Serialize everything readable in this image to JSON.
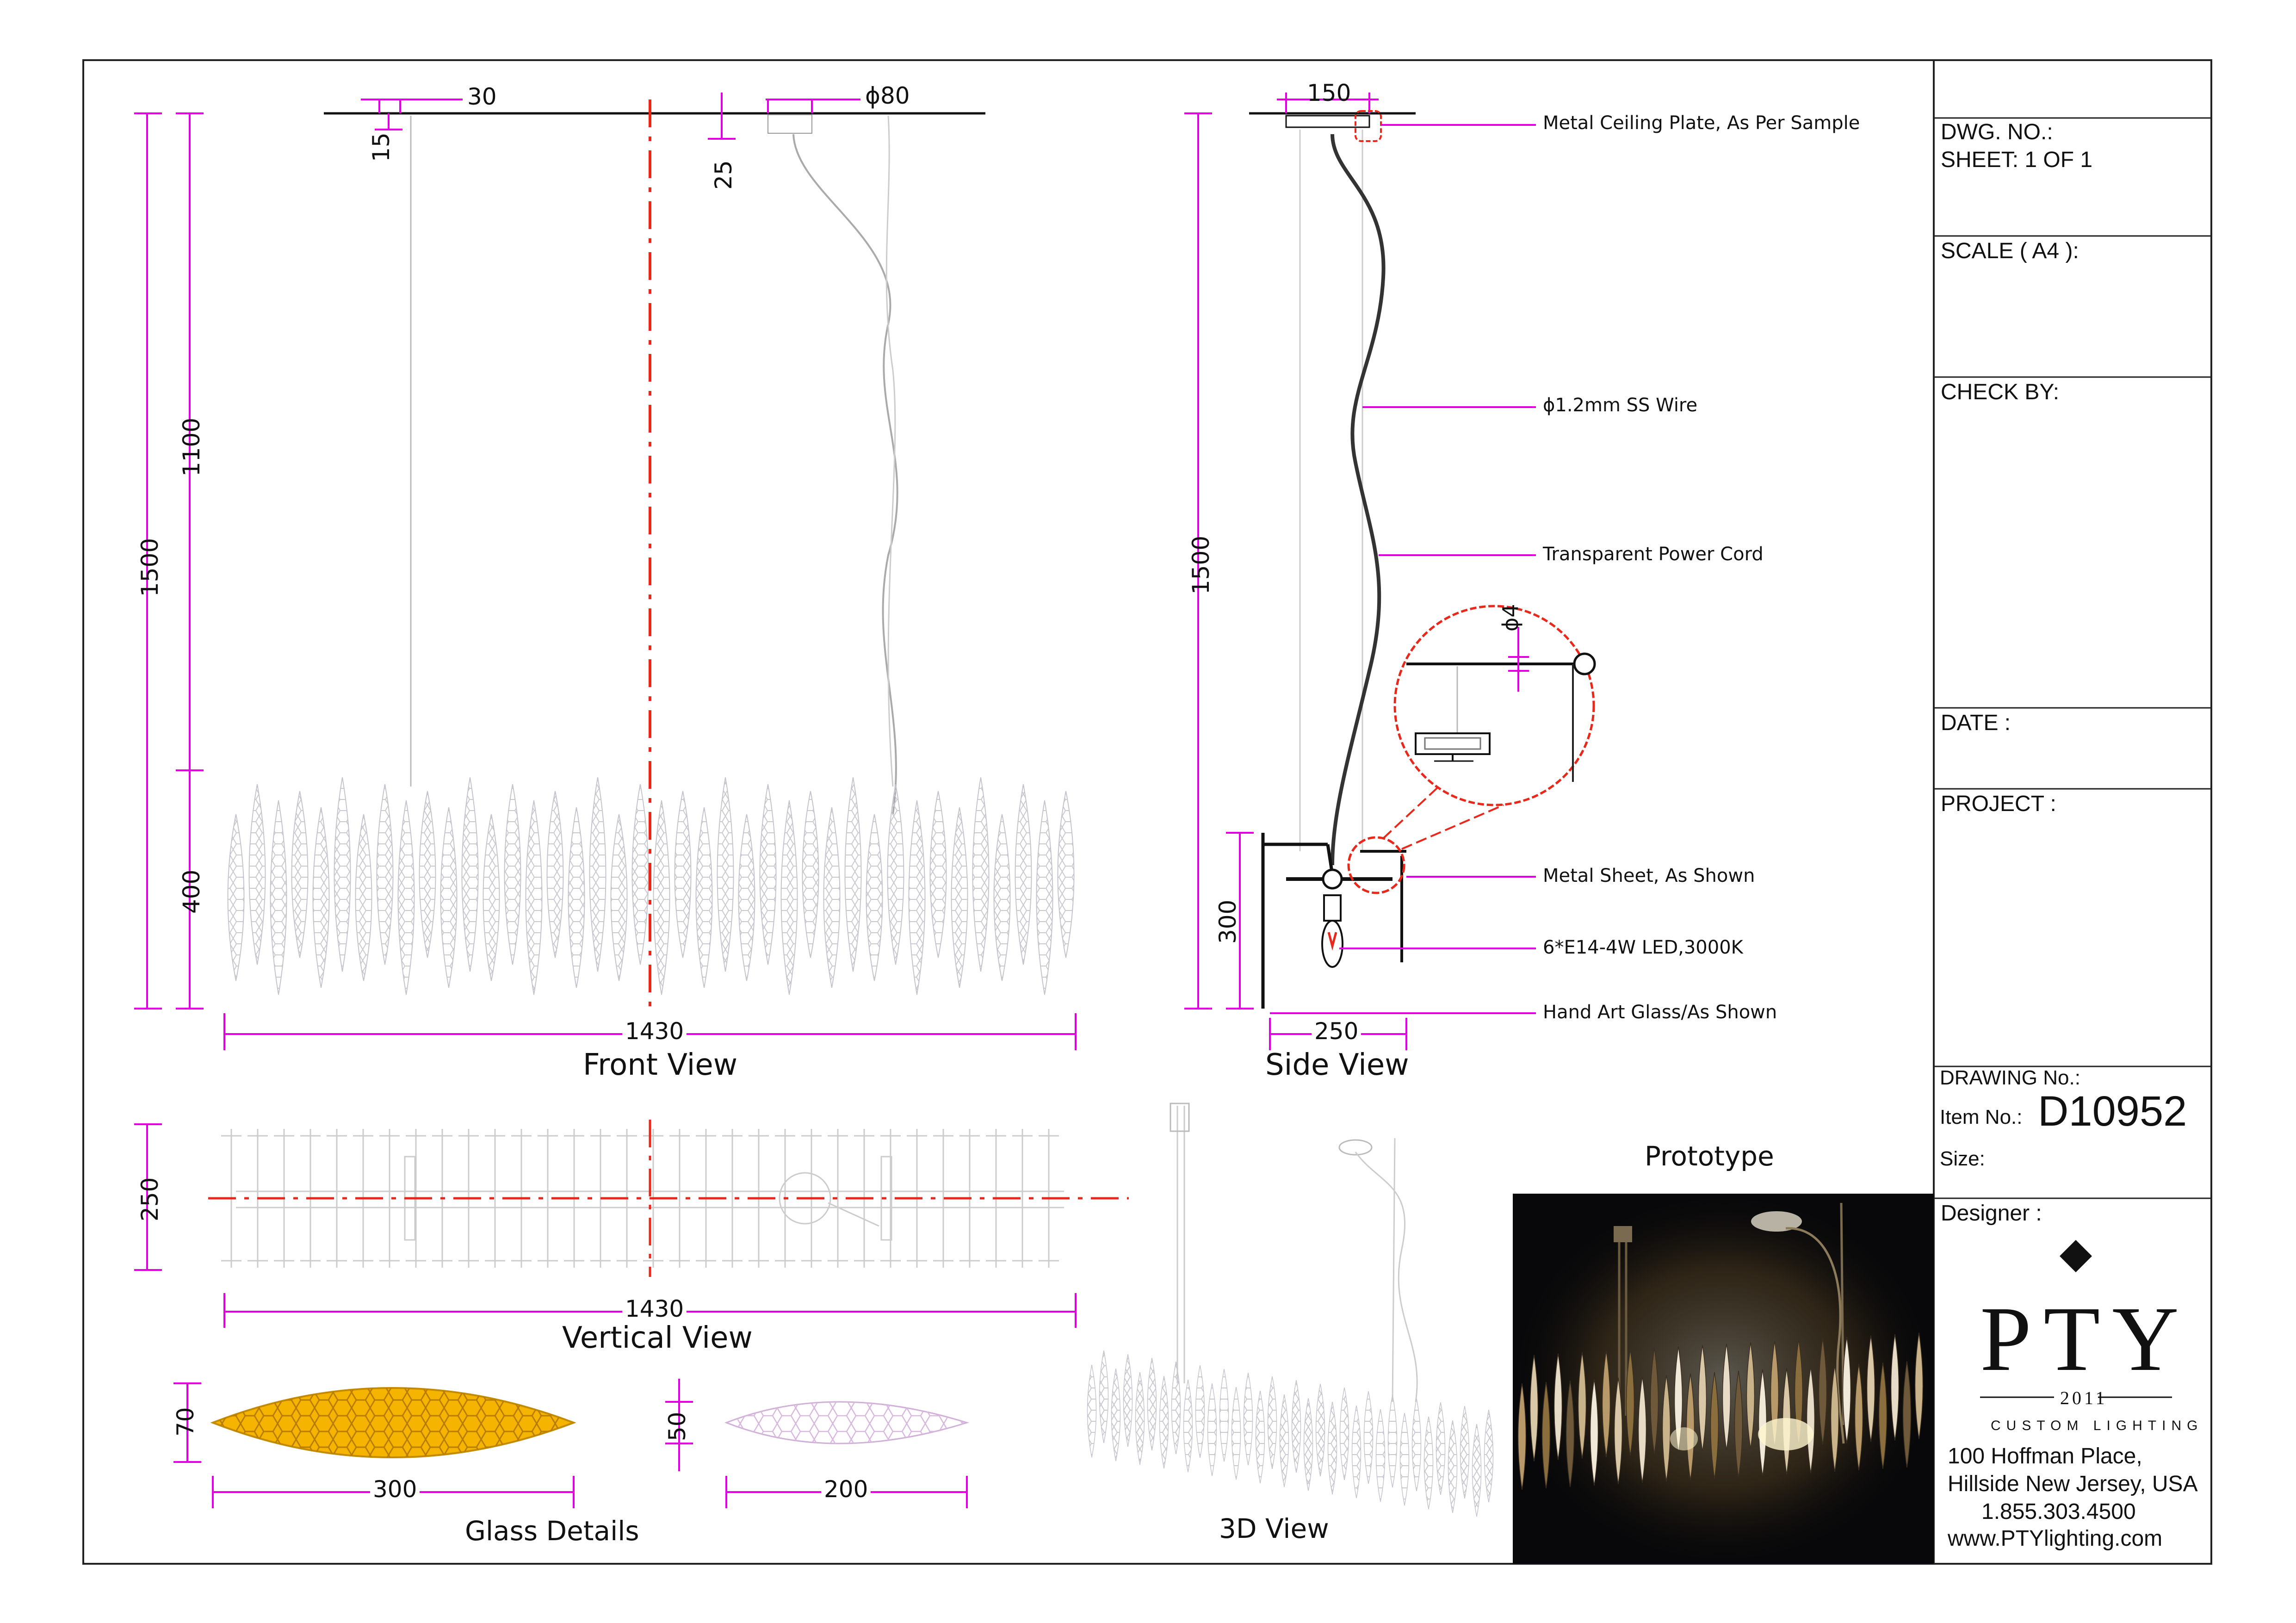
{
  "dimensions": {
    "front_top_left": "30",
    "front_plate_dia": "ϕ80",
    "front_drop_15": "15",
    "front_drop_25": "25",
    "front_total_height": "1500",
    "front_wire_height": "1100",
    "front_body_height": "400",
    "front_width": "1430",
    "side_plate_width": "150",
    "side_total_height": "1500",
    "side_frame_height": "300",
    "side_width": "250",
    "side_detail_dia": "ϕ4",
    "vertical_depth": "250",
    "vertical_width": "1430",
    "glass_large_height": "70",
    "glass_large_width": "300",
    "glass_small_height": "50",
    "glass_small_width": "200"
  },
  "callouts": {
    "ceiling_plate": "Metal Ceiling Plate, As Per Sample",
    "wire": "ϕ1.2mm SS Wire",
    "power_cord": "Transparent Power Cord",
    "metal_sheet": "Metal Sheet, As Shown",
    "led": "6*E14-4W LED,3000K",
    "glass": "Hand Art Glass/As Shown"
  },
  "view_titles": {
    "front": "Front View",
    "side": "Side View",
    "vertical": "Vertical View",
    "glass": "Glass Details",
    "three_d": "3D View",
    "prototype": "Prototype"
  },
  "title_block": {
    "dwg_no": "DWG. NO.:",
    "sheet": "SHEET: 1 OF 1",
    "scale": "SCALE ( A4 ):",
    "check_by": "CHECK BY:",
    "date": "DATE :",
    "project": "PROJECT :",
    "drawing_no": "DRAWING No.:",
    "item_no_label": "Item No.:",
    "item_no_value": "D10952",
    "size": "Size:",
    "designer": "Designer :"
  },
  "company": {
    "logo_name": "PTY",
    "logo_year": "2011",
    "logo_tagline": "CUSTOM LIGHTING",
    "address_line1": "100 Hoffman Place,",
    "address_line2": "Hillside New Jersey, USA",
    "phone": "1.855.303.4500",
    "website": "www.PTYlighting.com"
  },
  "colors": {
    "dimension": "#e000e0",
    "centerline": "#e8281a",
    "glass_gold": "#f5b400",
    "frame": "#111111",
    "photo_bg": "#08080a"
  }
}
